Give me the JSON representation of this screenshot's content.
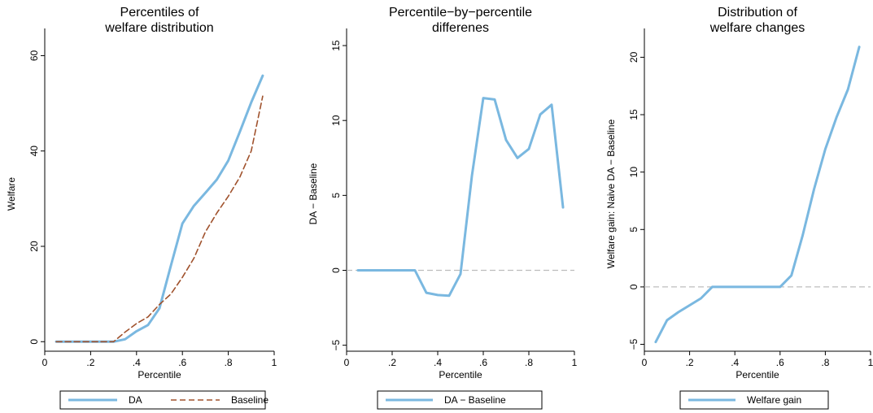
{
  "colors": {
    "da": "#7ab8e0",
    "baseline": "#a0522d",
    "zero_line": "#bdbdbd",
    "axis": "#000000",
    "background": "#ffffff"
  },
  "chart_data": [
    {
      "type": "line",
      "title_lines": [
        "Percentiles of",
        "welfare distribution"
      ],
      "xlabel": "Percentile",
      "ylabel": "Welfare",
      "xlim": [
        0,
        1
      ],
      "ylim": [
        -2,
        64
      ],
      "xticks": [
        0,
        0.2,
        0.4,
        0.6,
        0.8,
        1
      ],
      "xtick_labels": [
        "0",
        ".2",
        ".4",
        ".6",
        ".8",
        "1"
      ],
      "yticks": [
        0,
        20,
        40,
        60
      ],
      "ytick_labels": [
        "0",
        "20",
        "40",
        "60"
      ],
      "grid": false,
      "zero_line": false,
      "legend_position": "bottom",
      "series": [
        {
          "name": "DA",
          "style": "solid",
          "color": "#7ab8e0",
          "x": [
            0.05,
            0.1,
            0.15,
            0.2,
            0.25,
            0.3,
            0.35,
            0.4,
            0.45,
            0.5,
            0.55,
            0.6,
            0.65,
            0.7,
            0.75,
            0.8,
            0.85,
            0.9,
            0.95
          ],
          "y": [
            0,
            0,
            0,
            0,
            0,
            0,
            0.5,
            2.2,
            3.5,
            7,
            16,
            24.8,
            28.5,
            31.2,
            34,
            38,
            44,
            50.2,
            55.8
          ]
        },
        {
          "name": "Baseline",
          "style": "dashed",
          "color": "#a0522d",
          "x": [
            0.05,
            0.1,
            0.15,
            0.2,
            0.25,
            0.3,
            0.35,
            0.4,
            0.45,
            0.5,
            0.55,
            0.6,
            0.65,
            0.7,
            0.75,
            0.8,
            0.85,
            0.9,
            0.95
          ],
          "y": [
            0,
            0,
            0,
            0,
            0,
            0,
            2,
            3.8,
            5.2,
            7.8,
            10,
            13.5,
            17.5,
            23,
            27,
            30.5,
            34.5,
            40,
            51.5
          ]
        }
      ]
    },
    {
      "type": "line",
      "title_lines": [
        "Percentile−by−percentile",
        "differenes"
      ],
      "xlabel": "Percentile",
      "ylabel": "DA − Baseline",
      "xlim": [
        0,
        1
      ],
      "ylim": [
        -5.4,
        15.6
      ],
      "xticks": [
        0,
        0.2,
        0.4,
        0.6,
        0.8,
        1
      ],
      "xtick_labels": [
        "0",
        ".2",
        ".4",
        ".6",
        ".8",
        "1"
      ],
      "yticks": [
        -5,
        0,
        5,
        10,
        15
      ],
      "ytick_labels": [
        "−5",
        "0",
        "5",
        "10",
        "15"
      ],
      "grid": false,
      "zero_line": true,
      "legend_position": "bottom",
      "series": [
        {
          "name": "DA − Baseline",
          "style": "solid",
          "color": "#7ab8e0",
          "x": [
            0.05,
            0.1,
            0.15,
            0.2,
            0.25,
            0.3,
            0.35,
            0.4,
            0.45,
            0.5,
            0.55,
            0.6,
            0.65,
            0.7,
            0.75,
            0.8,
            0.85,
            0.9,
            0.95
          ],
          "y": [
            0,
            0,
            0,
            0,
            0,
            0,
            -1.5,
            -1.65,
            -1.7,
            -0.25,
            6.3,
            11.5,
            11.4,
            8.7,
            7.5,
            8.1,
            10.4,
            11.05,
            4.2
          ]
        }
      ]
    },
    {
      "type": "line",
      "title_lines": [
        "Distribution of",
        "welfare changes"
      ],
      "xlabel": "Percentile",
      "ylabel": "Welfare gain: Naive DA − Baseline",
      "xlim": [
        0,
        1
      ],
      "ylim": [
        -5.6,
        21.8
      ],
      "xticks": [
        0,
        0.2,
        0.4,
        0.6,
        0.8,
        1
      ],
      "xtick_labels": [
        "0",
        ".2",
        ".4",
        ".6",
        ".8",
        "1"
      ],
      "yticks": [
        -5,
        0,
        5,
        10,
        15,
        20
      ],
      "ytick_labels": [
        "−5",
        "0",
        "5",
        "10",
        "15",
        "20"
      ],
      "grid": false,
      "zero_line": true,
      "legend_position": "bottom",
      "series": [
        {
          "name": "Welfare gain",
          "style": "solid",
          "color": "#7ab8e0",
          "x": [
            0.05,
            0.1,
            0.15,
            0.2,
            0.25,
            0.3,
            0.35,
            0.4,
            0.45,
            0.5,
            0.55,
            0.6,
            0.65,
            0.7,
            0.75,
            0.8,
            0.85,
            0.9,
            0.95
          ],
          "y": [
            -4.8,
            -2.9,
            -2.2,
            -1.6,
            -1,
            0,
            0,
            0,
            0,
            0,
            0,
            0,
            1,
            4.5,
            8.5,
            12,
            14.8,
            17.2,
            20.9
          ]
        }
      ]
    }
  ]
}
